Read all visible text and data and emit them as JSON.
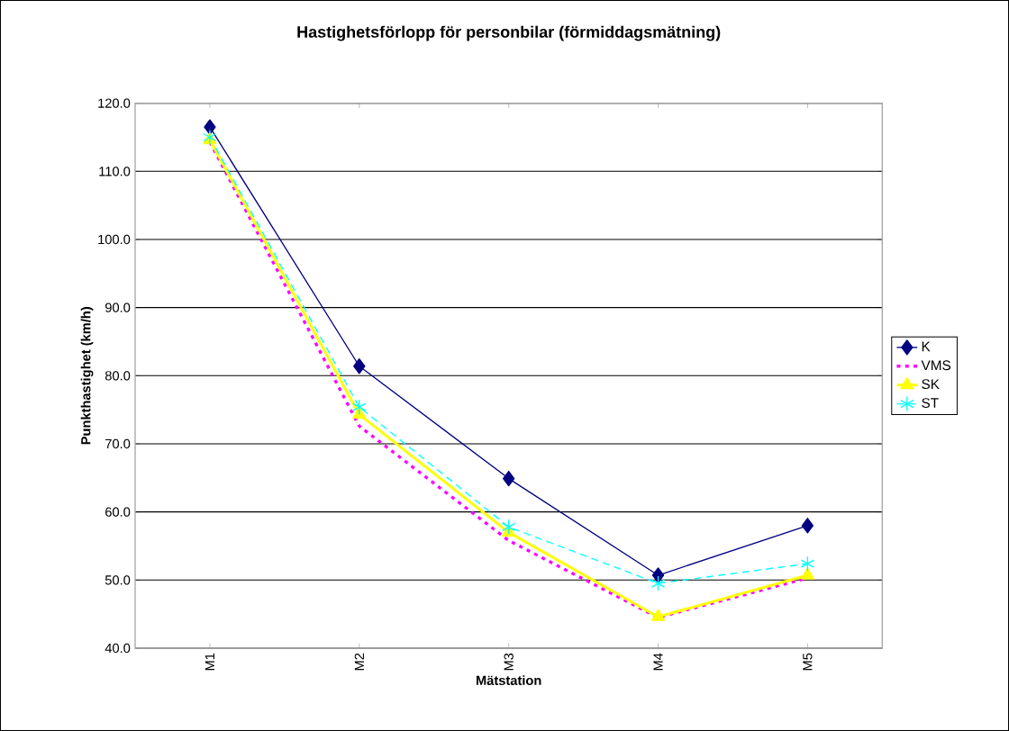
{
  "chart_data": {
    "type": "line",
    "title": "Hastighetsförlopp för personbilar (förmiddagsmätning)",
    "xlabel": "Mätstation",
    "ylabel": "Punkthastighet (km/h)",
    "categories": [
      "M1",
      "M2",
      "M3",
      "M4",
      "M5"
    ],
    "series": [
      {
        "name": "K",
        "color": "#000080",
        "marker": "diamond",
        "line_style": "solid",
        "values": [
          116.5,
          81.4,
          64.9,
          50.7,
          58.0
        ]
      },
      {
        "name": "VMS",
        "color": "#ff00ff",
        "marker": "none",
        "line_style": "dotted",
        "values": [
          114.3,
          72.6,
          55.8,
          44.5,
          50.3
        ]
      },
      {
        "name": "SK",
        "color": "#ffff00",
        "marker": "triangle",
        "line_style": "solid",
        "values": [
          114.6,
          74.3,
          57.0,
          44.6,
          50.7
        ]
      },
      {
        "name": "ST",
        "color": "#00ffff",
        "marker": "cross",
        "line_style": "dashed",
        "values": [
          115.0,
          75.4,
          57.8,
          49.5,
          52.4
        ]
      }
    ],
    "ylim": [
      40,
      120
    ],
    "yticks": [
      {
        "value": 40,
        "label": "40.0"
      },
      {
        "value": 50,
        "label": "50.0"
      },
      {
        "value": 60,
        "label": "60.0"
      },
      {
        "value": 70,
        "label": "70.0"
      },
      {
        "value": 80,
        "label": "80.0"
      },
      {
        "value": 90,
        "label": "90.0"
      },
      {
        "value": 100,
        "label": "100.0"
      },
      {
        "value": 110,
        "label": "110.0"
      },
      {
        "value": 120,
        "label": "120.0"
      }
    ],
    "grid": "y",
    "legend": "right"
  }
}
